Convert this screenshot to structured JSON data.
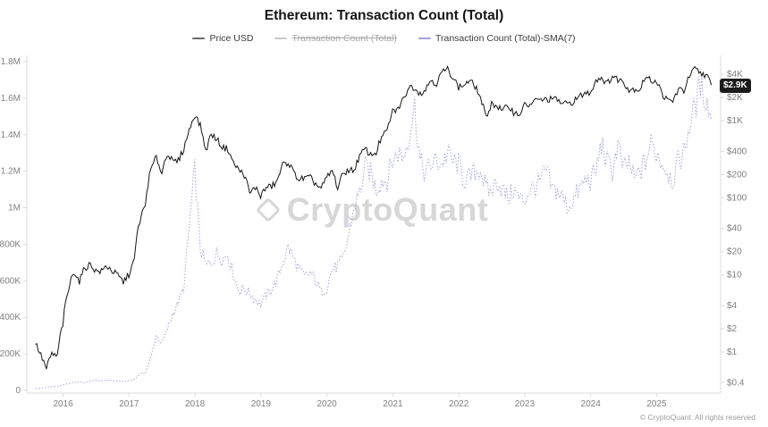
{
  "header": {
    "title": "Ethereum: Transaction Count (Total)"
  },
  "legend": {
    "items": [
      {
        "label": "Price USD",
        "marker_color": "#6b6b6b",
        "disabled": false
      },
      {
        "label": "Transaction Count (Total)",
        "marker_color": "#c9c9c9",
        "disabled": true
      },
      {
        "label": "Transaction Count (Total)-SMA(7)",
        "marker_color": "#a3a3de",
        "disabled": false
      }
    ]
  },
  "watermark": {
    "text": "CryptoQuant"
  },
  "price_badge": {
    "label": "$2.9K",
    "value": 2900,
    "bg": "#1c1c1c",
    "text_color": "#ffffff"
  },
  "footer": {
    "copyright": "© CryptoQuant. All rights reserved"
  },
  "chart_data": {
    "type": "line",
    "title": "Ethereum: Transaction Count (Total)",
    "grid": false,
    "legend_position": "top",
    "x_range": [
      2015.45,
      2025.97
    ],
    "x_ticks": [
      {
        "label": "2016",
        "value": 2016
      },
      {
        "label": "2017",
        "value": 2017
      },
      {
        "label": "2018",
        "value": 2018
      },
      {
        "label": "2019",
        "value": 2019
      },
      {
        "label": "2020",
        "value": 2020
      },
      {
        "label": "2021",
        "value": 2021
      },
      {
        "label": "2022",
        "value": 2022
      },
      {
        "label": "2023",
        "value": 2023
      },
      {
        "label": "2024",
        "value": 2024
      },
      {
        "label": "2025",
        "value": 2025
      }
    ],
    "left_axis": {
      "title": "Transaction Count (Total)-SMA(7)",
      "scale": "linear",
      "min": 0,
      "max": 1800000,
      "ticks": [
        {
          "label": "1.8M",
          "value": 1800000
        },
        {
          "label": "1.6M",
          "value": 1600000
        },
        {
          "label": "1.4M",
          "value": 1400000
        },
        {
          "label": "1.2M",
          "value": 1200000
        },
        {
          "label": "1M",
          "value": 1000000
        },
        {
          "label": "800K",
          "value": 800000
        },
        {
          "label": "600K",
          "value": 600000
        },
        {
          "label": "400K",
          "value": 400000
        },
        {
          "label": "200K",
          "value": 200000
        },
        {
          "label": "0",
          "value": 0
        }
      ]
    },
    "right_axis": {
      "title": "Price USD",
      "scale": "log",
      "ticks": [
        {
          "label": "$4K",
          "value": 4000
        },
        {
          "label": "$2K",
          "value": 2000
        },
        {
          "label": "$1K",
          "value": 1000
        },
        {
          "label": "$400",
          "value": 400
        },
        {
          "label": "$200",
          "value": 200
        },
        {
          "label": "$100",
          "value": 100
        },
        {
          "label": "$40",
          "value": 40
        },
        {
          "label": "$20",
          "value": 20
        },
        {
          "label": "$10",
          "value": 10
        },
        {
          "label": "$4",
          "value": 4
        },
        {
          "label": "$2",
          "value": 2
        },
        {
          "label": "$1",
          "value": 1
        },
        {
          "label": "$0.4",
          "value": 0.4
        }
      ]
    },
    "series": [
      {
        "name": "Price USD",
        "axis": "right",
        "color": "#141414",
        "style": "solid",
        "unit": "USD",
        "unit_scale": 1,
        "x_start": 2015.58,
        "x_step": 0.08333,
        "values": [
          1.3,
          0.9,
          0.6,
          0.95,
          0.87,
          2.3,
          6.2,
          11.2,
          8.2,
          12.3,
          13.8,
          11.2,
          11.1,
          13.1,
          11.2,
          9.8,
          8.1,
          10.1,
          15.2,
          50,
          79,
          228,
          335,
          204,
          382,
          290,
          303,
          427,
          746,
          1200,
          855,
          395,
          667,
          577,
          453,
          433,
          283,
          231,
          198,
          113,
          137,
          106,
          136,
          141,
          162,
          268,
          290,
          211,
          172,
          180,
          182,
          151,
          131,
          181,
          223,
          133,
          206,
          231,
          226,
          345,
          432,
          359,
          386,
          606,
          737,
          1310,
          1420,
          1920,
          2770,
          2710,
          2270,
          2530,
          3430,
          3000,
          4290,
          4630,
          3680,
          2690,
          2920,
          3280,
          2820,
          1940,
          1070,
          1680,
          1550,
          1330,
          1570,
          1290,
          1200,
          1580,
          1610,
          1820,
          1870,
          1870,
          1930,
          1860,
          1650,
          1670,
          1800,
          2050,
          2280,
          2280,
          3380,
          3650,
          3010,
          3760,
          3440,
          3230,
          2520,
          2600,
          2520,
          3700,
          3330,
          3300,
          2240,
          1820,
          1790,
          2530,
          2440,
          3700,
          4700,
          4150,
          3950,
          2900
        ]
      },
      {
        "name": "Transaction Count (Total)-SMA(7)",
        "axis": "left",
        "color": "#a3a3de",
        "style": "dotted",
        "unit": "transactions",
        "unit_scale": 1000,
        "x_start": 2015.58,
        "x_step": 0.08333,
        "values": [
          8,
          12,
          17,
          22,
          21,
          28,
          38,
          46,
          45,
          44,
          50,
          56,
          51,
          55,
          54,
          50,
          49,
          52,
          61,
          88,
          96,
          180,
          300,
          255,
          330,
          420,
          480,
          560,
          900,
          1210,
          780,
          680,
          700,
          750,
          720,
          745,
          640,
          545,
          555,
          530,
          500,
          470,
          520,
          555,
          605,
          700,
          785,
          720,
          660,
          620,
          645,
          600,
          540,
          560,
          660,
          680,
          720,
          850,
          1000,
          1080,
          1220,
          1190,
          1100,
          1150,
          1150,
          1260,
          1300,
          1280,
          1400,
          1560,
          1250,
          1180,
          1240,
          1250,
          1240,
          1300,
          1250,
          1240,
          1150,
          1160,
          1200,
          1210,
          1100,
          1090,
          1150,
          1100,
          1050,
          1100,
          1050,
          1040,
          1100,
          1110,
          1150,
          1200,
          1100,
          1090,
          1050,
          1000,
          1050,
          1100,
          1150,
          1150,
          1200,
          1350,
          1250,
          1200,
          1350,
          1200,
          1250,
          1150,
          1200,
          1250,
          1350,
          1300,
          1250,
          1200,
          1150,
          1250,
          1300,
          1450,
          1550,
          1670,
          1600,
          1480
        ]
      }
    ]
  }
}
